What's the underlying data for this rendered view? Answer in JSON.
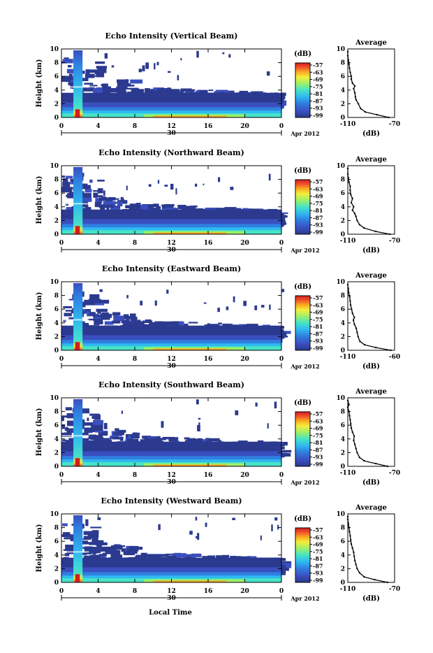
{
  "x_axis_label": "Local Time",
  "date_label": "Apr 2012",
  "day_label": "30",
  "units_label": "(dB)",
  "colorbar_ticks": [
    "-57",
    "-63",
    "-69",
    "-75",
    "-81",
    "-87",
    "-93",
    "-99"
  ],
  "colors": {
    "scale": [
      "#2b3a8f",
      "#3a4fbf",
      "#2f7fe0",
      "#2fb9f0",
      "#46e3c8",
      "#9bf06a",
      "#f5ee3c",
      "#f9a520",
      "#f0502a",
      "#d21e1e"
    ]
  },
  "chart_data": [
    {
      "type": "heatmap",
      "title": "Echo Intensity (Vertical Beam)",
      "xlabel": "",
      "ylabel": "Height (km)",
      "xlim": [
        0,
        24
      ],
      "ylim": [
        0,
        10
      ],
      "xticks": [
        "0",
        "4",
        "8",
        "12",
        "16",
        "20",
        "0"
      ],
      "yticks": [
        "0",
        "2",
        "4",
        "6",
        "8",
        "10"
      ],
      "color_range_db": [
        -99,
        -57
      ],
      "profile": {
        "type": "line",
        "title": "Average",
        "xlabel": "(dB)",
        "xlim": [
          -110,
          -70
        ],
        "xticks": [
          "-110",
          "-70"
        ],
        "ylim": [
          0,
          10
        ],
        "points": [
          [
            -75,
            0
          ],
          [
            -85,
            0.4
          ],
          [
            -95,
            0.8
          ],
          [
            -99,
            1.3
          ],
          [
            -101,
            2.0
          ],
          [
            -103,
            2.6
          ],
          [
            -103.5,
            3.0
          ],
          [
            -104,
            3.6
          ],
          [
            -105,
            4.2
          ],
          [
            -104,
            4.6
          ],
          [
            -106,
            5.0
          ],
          [
            -107,
            5.6
          ],
          [
            -107,
            6.0
          ],
          [
            -108,
            6.6
          ],
          [
            -108.5,
            7.2
          ],
          [
            -109,
            7.8
          ],
          [
            -109.5,
            8.4
          ],
          [
            -110,
            9.0
          ],
          [
            -110,
            9.6
          ]
        ]
      }
    },
    {
      "type": "heatmap",
      "title": "Echo Intensity (Northward Beam)",
      "xlabel": "",
      "ylabel": "Height (km)",
      "xlim": [
        0,
        24
      ],
      "ylim": [
        0,
        10
      ],
      "xticks": [
        "0",
        "4",
        "8",
        "12",
        "16",
        "20",
        "0"
      ],
      "yticks": [
        "0",
        "2",
        "4",
        "6",
        "8",
        "10"
      ],
      "color_range_db": [
        -99,
        -57
      ],
      "profile": {
        "type": "line",
        "title": "Average",
        "xlabel": "(dB)",
        "xlim": [
          -110,
          -70
        ],
        "xticks": [
          "-110",
          "-70"
        ],
        "ylim": [
          0,
          10
        ],
        "points": [
          [
            -74,
            0
          ],
          [
            -86,
            0.4
          ],
          [
            -96,
            0.9
          ],
          [
            -100,
            1.4
          ],
          [
            -102,
            2.0
          ],
          [
            -103,
            2.6
          ],
          [
            -104,
            3.0
          ],
          [
            -106,
            3.5
          ],
          [
            -105,
            4.0
          ],
          [
            -107,
            4.6
          ],
          [
            -106,
            5.2
          ],
          [
            -107.5,
            5.8
          ],
          [
            -108,
            6.4
          ],
          [
            -108,
            7.0
          ],
          [
            -109,
            7.6
          ],
          [
            -109.5,
            8.2
          ],
          [
            -110,
            8.8
          ],
          [
            -110,
            9.6
          ]
        ]
      }
    },
    {
      "type": "heatmap",
      "title": "Echo Intensity (Eastward Beam)",
      "xlabel": "",
      "ylabel": "Height (km)",
      "xlim": [
        0,
        24
      ],
      "ylim": [
        0,
        10
      ],
      "xticks": [
        "0",
        "4",
        "8",
        "12",
        "16",
        "20",
        "0"
      ],
      "yticks": [
        "0",
        "2",
        "4",
        "6",
        "8",
        "10"
      ],
      "color_range_db": [
        -99,
        -57
      ],
      "profile": {
        "type": "line",
        "title": "Average",
        "xlabel": "(dB)",
        "xlim": [
          -110,
          -60
        ],
        "xticks": [
          "-110",
          "-60"
        ],
        "ylim": [
          0,
          10
        ],
        "points": [
          [
            -64,
            0
          ],
          [
            -80,
            0.4
          ],
          [
            -92,
            0.8
          ],
          [
            -97,
            1.3
          ],
          [
            -99,
            2.0
          ],
          [
            -100,
            2.6
          ],
          [
            -101,
            3.2
          ],
          [
            -103,
            3.8
          ],
          [
            -104,
            4.4
          ],
          [
            -103,
            4.8
          ],
          [
            -105,
            5.4
          ],
          [
            -106,
            6.0
          ],
          [
            -107,
            6.6
          ],
          [
            -107.5,
            7.2
          ],
          [
            -108,
            7.8
          ],
          [
            -109,
            8.4
          ],
          [
            -109.5,
            9.0
          ],
          [
            -110,
            9.6
          ]
        ]
      }
    },
    {
      "type": "heatmap",
      "title": "Echo Intensity (Southward Beam)",
      "xlabel": "",
      "ylabel": "Height (km)",
      "xlim": [
        0,
        24
      ],
      "ylim": [
        0,
        10
      ],
      "xticks": [
        "0",
        "4",
        "8",
        "12",
        "16",
        "20",
        "0"
      ],
      "yticks": [
        "0",
        "2",
        "4",
        "6",
        "8",
        "10"
      ],
      "color_range_db": [
        -99,
        -57
      ],
      "profile": {
        "type": "line",
        "title": "Average",
        "xlabel": "(dB)",
        "xlim": [
          -110,
          -70
        ],
        "xticks": [
          "-110",
          "-70"
        ],
        "ylim": [
          0,
          10
        ],
        "points": [
          [
            -76,
            0
          ],
          [
            -86,
            0.4
          ],
          [
            -96,
            0.8
          ],
          [
            -100,
            1.3
          ],
          [
            -102,
            2.0
          ],
          [
            -103,
            2.6
          ],
          [
            -104,
            3.2
          ],
          [
            -105,
            3.8
          ],
          [
            -104.5,
            4.4
          ],
          [
            -106,
            5.0
          ],
          [
            -107,
            5.6
          ],
          [
            -107.5,
            6.2
          ],
          [
            -108,
            6.8
          ],
          [
            -108.5,
            7.4
          ],
          [
            -109,
            8.0
          ],
          [
            -110,
            8.6
          ],
          [
            -109,
            9.0
          ],
          [
            -110,
            9.6
          ]
        ]
      }
    },
    {
      "type": "heatmap",
      "title": "Echo Intensity (Westward Beam)",
      "xlabel": "Local Time",
      "ylabel": "Height (km)",
      "xlim": [
        0,
        24
      ],
      "ylim": [
        0,
        10
      ],
      "xticks": [
        "0",
        "4",
        "8",
        "12",
        "16",
        "20",
        "0"
      ],
      "yticks": [
        "0",
        "2",
        "4",
        "6",
        "8",
        "10"
      ],
      "color_range_db": [
        -99,
        -57
      ],
      "profile": {
        "type": "line",
        "title": "Average",
        "xlabel": "(dB)",
        "xlim": [
          -110,
          -70
        ],
        "xticks": [
          "-110",
          "-70"
        ],
        "ylim": [
          0,
          10
        ],
        "points": [
          [
            -76,
            0
          ],
          [
            -87,
            0.4
          ],
          [
            -96,
            0.8
          ],
          [
            -100,
            1.4
          ],
          [
            -102,
            2.0
          ],
          [
            -103,
            2.6
          ],
          [
            -104,
            3.2
          ],
          [
            -104.5,
            3.8
          ],
          [
            -105,
            4.4
          ],
          [
            -106,
            5.0
          ],
          [
            -107,
            5.6
          ],
          [
            -107.5,
            6.2
          ],
          [
            -108,
            6.8
          ],
          [
            -108.5,
            7.4
          ],
          [
            -109,
            8.0
          ],
          [
            -109.5,
            8.6
          ],
          [
            -110,
            9.2
          ],
          [
            -110,
            9.6
          ]
        ]
      }
    }
  ]
}
